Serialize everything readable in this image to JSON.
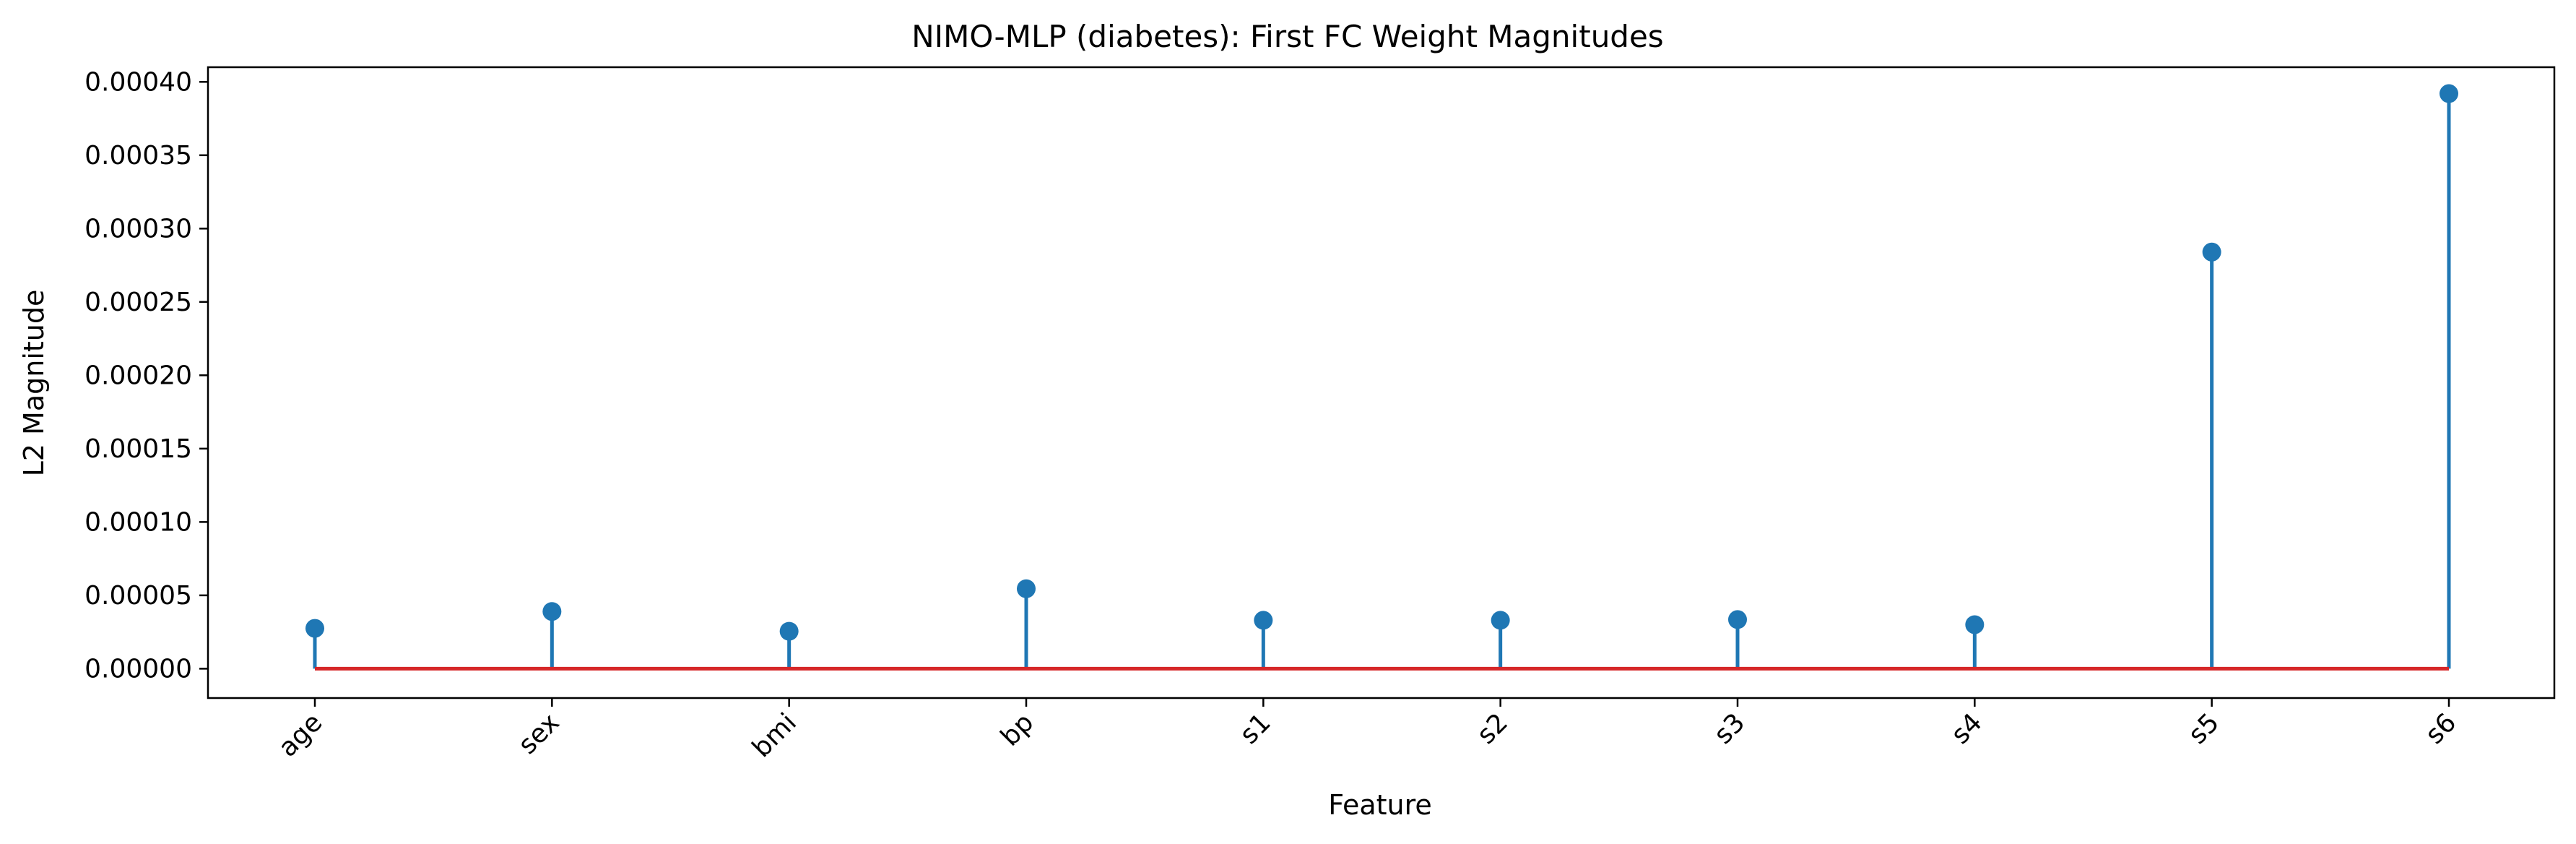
{
  "chart_data": {
    "type": "stem",
    "title": "NIMO-MLP (diabetes): First FC Weight Magnitudes",
    "xlabel": "Feature",
    "ylabel": "L2 Magnitude",
    "categories": [
      "age",
      "sex",
      "bmi",
      "bp",
      "s1",
      "s2",
      "s3",
      "s4",
      "s5",
      "s6"
    ],
    "values": [
      2.75e-05,
      3.9e-05,
      2.55e-05,
      5.45e-05,
      3.3e-05,
      3.3e-05,
      3.35e-05,
      3e-05,
      0.000284,
      0.000392
    ],
    "ylim": [
      -2e-05,
      0.00041
    ],
    "yticks": [
      0.0,
      5e-05,
      0.0001,
      0.00015,
      0.0002,
      0.00025,
      0.0003,
      0.00035,
      0.0004
    ],
    "ytick_labels": [
      "0.00000",
      "0.00005",
      "0.00010",
      "0.00015",
      "0.00020",
      "0.00025",
      "0.00030",
      "0.00035",
      "0.00040"
    ],
    "grid": false,
    "colors": {
      "stem": "#1f77b4",
      "baseline": "#d62728"
    }
  }
}
